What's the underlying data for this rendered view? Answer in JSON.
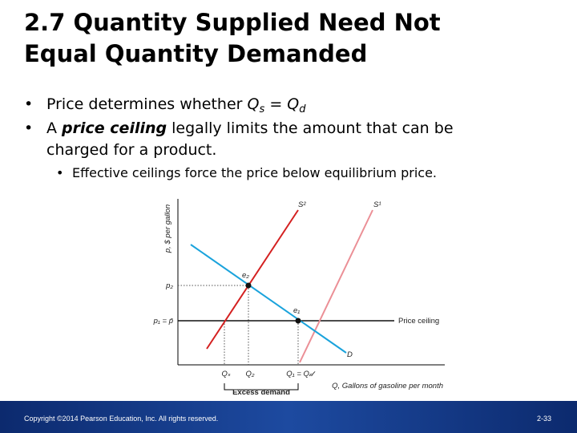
{
  "title": {
    "lines": [
      "2.7  Quantity Supplied Need Not",
      "Equal Quantity Demanded"
    ]
  },
  "bullets": [
    {
      "parts": [
        "Price determines whether ",
        "Q",
        "s",
        " = ",
        "Q",
        "d"
      ]
    },
    {
      "parts": [
        "A ",
        "price ceiling",
        " legally limits the amount that can be",
        "charged for a product."
      ]
    },
    {
      "parts": [
        "Effective ceilings force the price below equilibrium price."
      ]
    }
  ],
  "figure": {
    "y_axis_label": "p, $ per gallon",
    "x_axis_label": "Q, Gallons of gasoline per month",
    "s2": "S²",
    "s1": "S¹",
    "d": "D",
    "e2": "e₂",
    "e1": "e₁",
    "p2": "p₂",
    "p1": "p₁ = p̄",
    "ceiling": "Price ceiling",
    "qs": "Qₛ",
    "q2": "Q₂",
    "q1": "Q₁ = Q𝒹",
    "excess": "Excess demand"
  },
  "footer": {
    "copyright": "Copyright ©2014 Pearson Education, Inc. All rights reserved.",
    "page": "2-33"
  }
}
